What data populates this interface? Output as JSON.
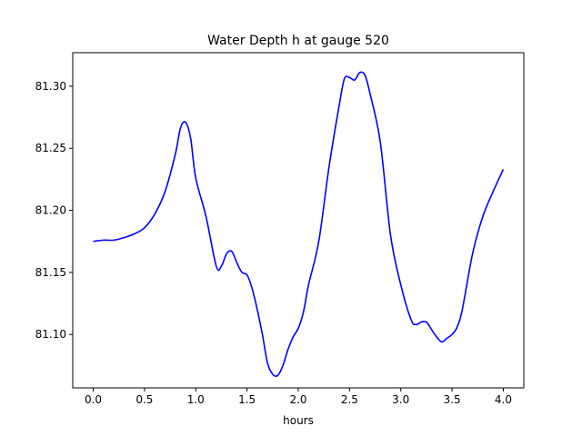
{
  "chart_data": {
    "type": "line",
    "title": "Water Depth h at gauge 520",
    "xlabel": "hours",
    "ylabel": "",
    "xlim": [
      -0.2,
      4.2
    ],
    "ylim": [
      81.057,
      81.327
    ],
    "grid": false,
    "xticks": [
      0.0,
      0.5,
      1.0,
      1.5,
      2.0,
      2.5,
      3.0,
      3.5,
      4.0
    ],
    "xtick_labels": [
      "0.0",
      "0.5",
      "1.0",
      "1.5",
      "2.0",
      "2.5",
      "3.0",
      "3.5",
      "4.0"
    ],
    "yticks": [
      81.1,
      81.15,
      81.2,
      81.25,
      81.3
    ],
    "ytick_labels": [
      "81.10",
      "81.15",
      "81.20",
      "81.25",
      "81.30"
    ],
    "series": [
      {
        "color": "#0000ff",
        "x": [
          0.0,
          0.1,
          0.2,
          0.3,
          0.4,
          0.5,
          0.6,
          0.7,
          0.8,
          0.85,
          0.9,
          0.95,
          1.0,
          1.1,
          1.2,
          1.25,
          1.3,
          1.35,
          1.4,
          1.45,
          1.5,
          1.55,
          1.6,
          1.65,
          1.7,
          1.75,
          1.8,
          1.85,
          1.9,
          1.95,
          2.0,
          2.05,
          2.1,
          2.2,
          2.3,
          2.4,
          2.45,
          2.5,
          2.55,
          2.6,
          2.65,
          2.7,
          2.8,
          2.9,
          3.0,
          3.1,
          3.15,
          3.2,
          3.25,
          3.3,
          3.35,
          3.4,
          3.45,
          3.5,
          3.55,
          3.6,
          3.7,
          3.8,
          3.9,
          4.0
        ],
        "y": [
          81.175,
          81.176,
          81.176,
          81.178,
          81.181,
          81.186,
          81.197,
          81.215,
          81.245,
          81.266,
          81.271,
          81.258,
          81.226,
          81.195,
          81.155,
          81.155,
          81.165,
          81.167,
          81.158,
          81.15,
          81.148,
          81.137,
          81.12,
          81.1,
          81.077,
          81.068,
          81.067,
          81.075,
          81.088,
          81.098,
          81.105,
          81.118,
          81.14,
          81.175,
          81.235,
          81.285,
          81.306,
          81.307,
          81.305,
          81.311,
          81.309,
          81.294,
          81.255,
          81.18,
          81.14,
          81.112,
          81.108,
          81.11,
          81.11,
          81.104,
          81.098,
          81.094,
          81.097,
          81.1,
          81.106,
          81.12,
          81.165,
          81.195,
          81.215,
          81.233
        ]
      }
    ]
  }
}
